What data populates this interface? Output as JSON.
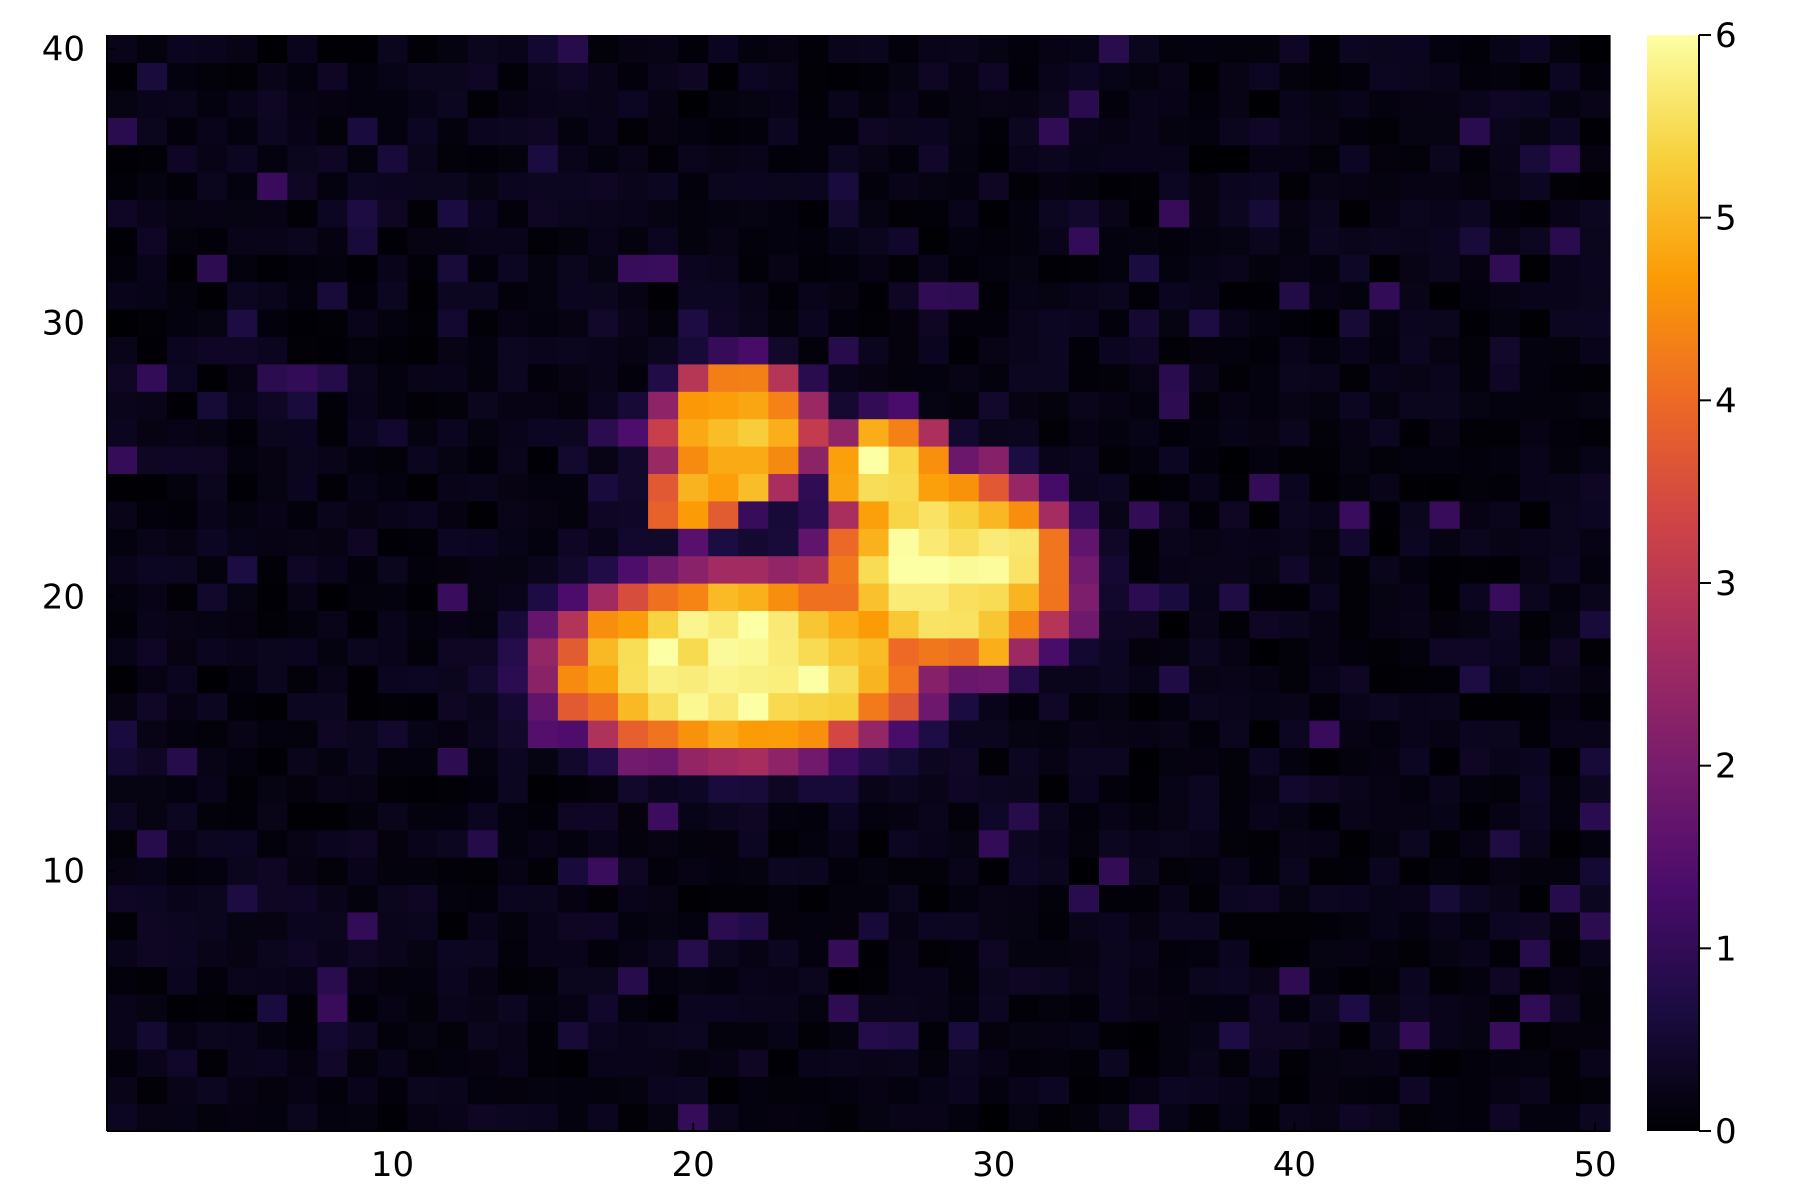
{
  "chart_data": {
    "type": "heatmap",
    "title": "",
    "xlabel": "",
    "ylabel": "",
    "xlim": [
      0.5,
      50.5
    ],
    "ylim": [
      0.5,
      40.5
    ],
    "nx": 50,
    "ny": 40,
    "grid": false,
    "colormap": "inferno",
    "colorbar": {
      "min": 0,
      "max": 6,
      "ticks": [
        0,
        1,
        2,
        3,
        4,
        5,
        6
      ]
    },
    "x_ticks": [
      10,
      20,
      30,
      40,
      50
    ],
    "y_ticks": [
      10,
      20,
      30,
      40
    ],
    "background_level": 0.35,
    "blobs": [
      {
        "cx": 21.5,
        "cy": 17.5,
        "rx": 6.0,
        "ry": 3.3,
        "peak": 6
      },
      {
        "cx": 28.5,
        "cy": 21.0,
        "rx": 4.0,
        "ry": 3.5,
        "peak": 6
      },
      {
        "cx": 26.5,
        "cy": 24.5,
        "rx": 2.0,
        "ry": 2.0,
        "peak": 5.8
      },
      {
        "cx": 21.5,
        "cy": 26.0,
        "rx": 2.6,
        "ry": 2.5,
        "peak": 5.2
      },
      {
        "cx": 20.0,
        "cy": 23.5,
        "rx": 1.4,
        "ry": 1.3,
        "peak": 4.8
      }
    ],
    "colors": {
      "stops": [
        "#000004",
        "#1b0c41",
        "#4a0c6b",
        "#781c6d",
        "#a52c60",
        "#cf4446",
        "#ed6925",
        "#fb9b06",
        "#f7d13d",
        "#fcffa4"
      ]
    }
  }
}
